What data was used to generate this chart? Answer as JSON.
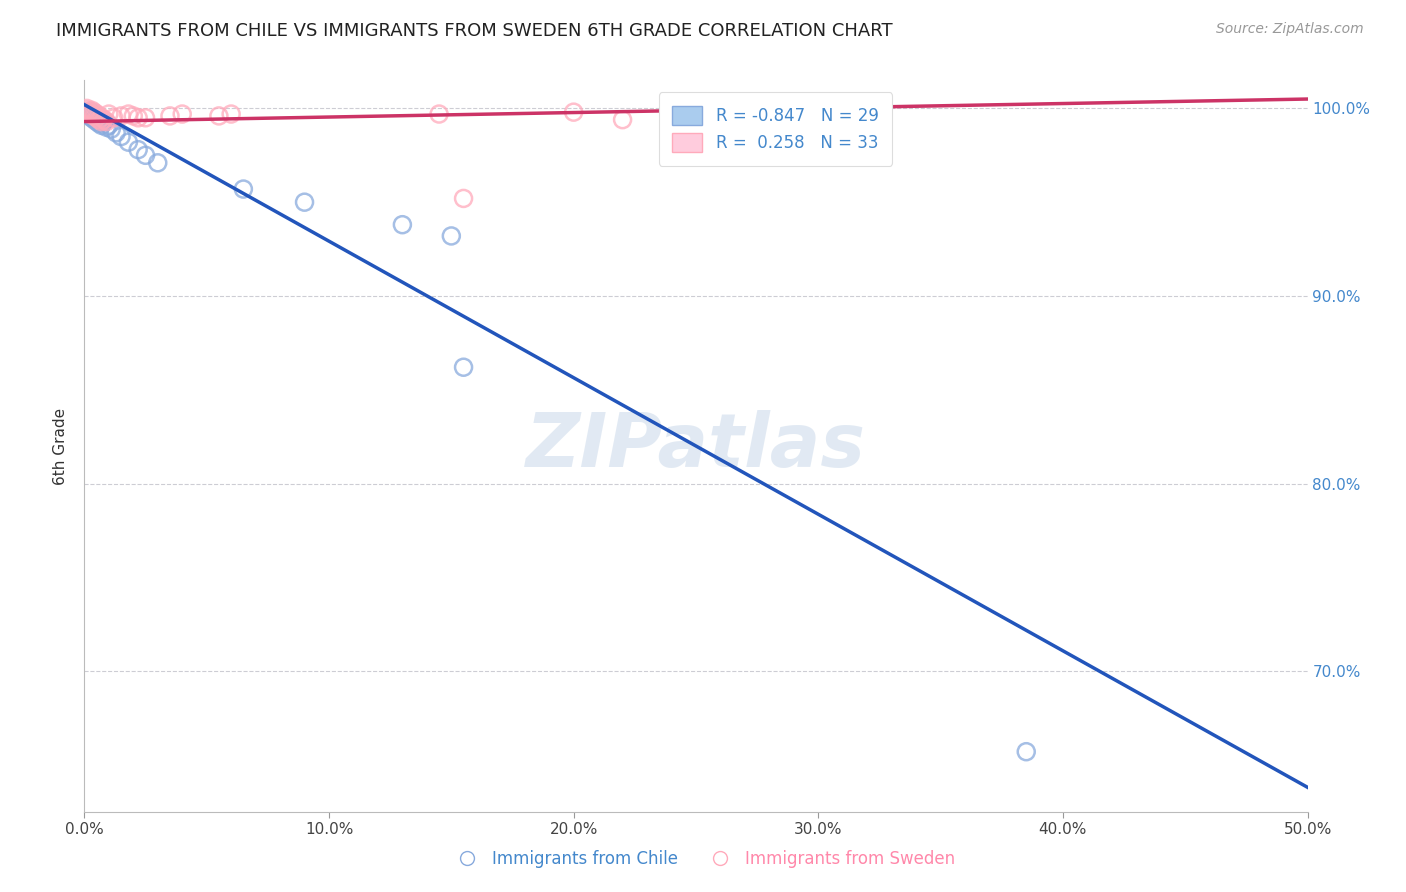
{
  "title": "IMMIGRANTS FROM CHILE VS IMMIGRANTS FROM SWEDEN 6TH GRADE CORRELATION CHART",
  "source": "Source: ZipAtlas.com",
  "ylabel": "6th Grade",
  "xlim": [
    0.0,
    0.5
  ],
  "ylim": [
    0.625,
    1.015
  ],
  "xticks": [
    0.0,
    0.1,
    0.2,
    0.3,
    0.4,
    0.5
  ],
  "xtick_labels": [
    "0.0%",
    "10.0%",
    "20.0%",
    "30.0%",
    "40.0%",
    "50.0%"
  ],
  "yticks": [
    0.7,
    0.8,
    0.9,
    1.0
  ],
  "ytick_labels": [
    "70.0%",
    "80.0%",
    "90.0%",
    "100.0%"
  ],
  "grid_color": "#c8c8d0",
  "background_color": "#ffffff",
  "watermark": "ZIPatlas",
  "chile_color": "#88aadd",
  "sweden_color": "#ffaabb",
  "chile_line_color": "#2255bb",
  "sweden_line_color": "#cc3366",
  "legend_chile_face": "#aaccee",
  "legend_sweden_face": "#ffccdd",
  "legend_chile_label": "R = -0.847   N = 29",
  "legend_sweden_label": "R =  0.258   N = 33",
  "chile_scatter": [
    [
      0.001,
      0.998
    ],
    [
      0.002,
      0.997
    ],
    [
      0.002,
      0.996
    ],
    [
      0.003,
      0.998
    ],
    [
      0.003,
      0.995
    ],
    [
      0.004,
      0.997
    ],
    [
      0.004,
      0.994
    ],
    [
      0.005,
      0.996
    ],
    [
      0.005,
      0.993
    ],
    [
      0.006,
      0.995
    ],
    [
      0.006,
      0.992
    ],
    [
      0.007,
      0.994
    ],
    [
      0.007,
      0.991
    ],
    [
      0.008,
      0.993
    ],
    [
      0.009,
      0.99
    ],
    [
      0.01,
      0.991
    ],
    [
      0.011,
      0.989
    ],
    [
      0.013,
      0.987
    ],
    [
      0.015,
      0.985
    ],
    [
      0.018,
      0.982
    ],
    [
      0.022,
      0.978
    ],
    [
      0.025,
      0.975
    ],
    [
      0.03,
      0.971
    ],
    [
      0.065,
      0.957
    ],
    [
      0.09,
      0.95
    ],
    [
      0.13,
      0.938
    ],
    [
      0.15,
      0.932
    ],
    [
      0.155,
      0.862
    ],
    [
      0.385,
      0.657
    ]
  ],
  "sweden_scatter": [
    [
      0.001,
      1.0
    ],
    [
      0.001,
      0.999
    ],
    [
      0.002,
      0.998
    ],
    [
      0.002,
      0.997
    ],
    [
      0.003,
      0.999
    ],
    [
      0.003,
      0.997
    ],
    [
      0.004,
      0.998
    ],
    [
      0.004,
      0.996
    ],
    [
      0.005,
      0.997
    ],
    [
      0.005,
      0.995
    ],
    [
      0.006,
      0.996
    ],
    [
      0.006,
      0.994
    ],
    [
      0.007,
      0.995
    ],
    [
      0.007,
      0.993
    ],
    [
      0.008,
      0.994
    ],
    [
      0.009,
      0.993
    ],
    [
      0.01,
      0.997
    ],
    [
      0.012,
      0.995
    ],
    [
      0.015,
      0.996
    ],
    [
      0.018,
      0.997
    ],
    [
      0.02,
      0.996
    ],
    [
      0.022,
      0.995
    ],
    [
      0.025,
      0.995
    ],
    [
      0.035,
      0.996
    ],
    [
      0.04,
      0.997
    ],
    [
      0.055,
      0.996
    ],
    [
      0.06,
      0.997
    ],
    [
      0.145,
      0.997
    ],
    [
      0.2,
      0.998
    ],
    [
      0.22,
      0.994
    ],
    [
      0.27,
      0.995
    ],
    [
      0.28,
      0.994
    ],
    [
      0.155,
      0.952
    ]
  ],
  "chile_line_x": [
    0.0,
    0.5
  ],
  "chile_line_y": [
    1.002,
    0.638
  ],
  "sweden_line_x": [
    0.0,
    0.5
  ],
  "sweden_line_y": [
    0.993,
    1.005
  ]
}
